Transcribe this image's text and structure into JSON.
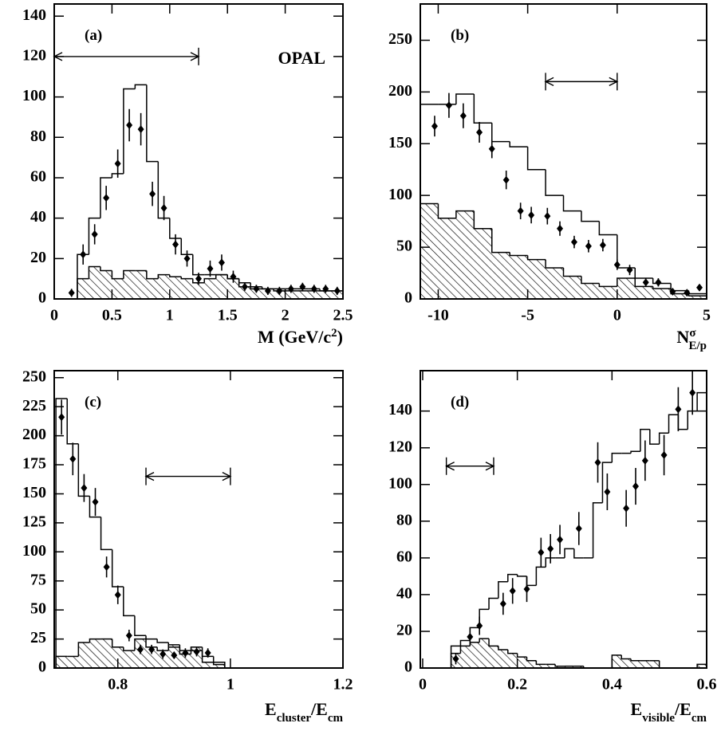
{
  "chart_data": [
    {
      "type": "histogram",
      "panel_label": "(a)",
      "annotation": "OPAL",
      "xlabel": [
        {
          "text": "M (GeV/c"
        },
        {
          "text": "2",
          "baseline": "super"
        },
        {
          "text": ")"
        }
      ],
      "xlim": [
        0,
        2.5
      ],
      "ylim": [
        0,
        146
      ],
      "xticks": [
        0,
        0.5,
        1,
        1.5,
        2,
        2.5
      ],
      "yticks": [
        0,
        20,
        40,
        60,
        80,
        100,
        120,
        140
      ],
      "bins": [
        0.2,
        0.3,
        0.4,
        0.5,
        0.6,
        0.7,
        0.8,
        0.9,
        1,
        1.1,
        1.2,
        1.3,
        1.4,
        1.5,
        1.6,
        1.7,
        1.8,
        1.9,
        2,
        2.1,
        2.2,
        2.3,
        2.4,
        2.5
      ],
      "values": [
        22,
        40,
        60,
        62,
        104,
        106,
        68,
        40,
        30,
        22,
        12,
        12,
        12,
        10,
        8,
        6,
        5,
        5,
        5,
        5,
        5,
        4,
        4
      ],
      "background": [
        10,
        16,
        14,
        10,
        14,
        14,
        10,
        12,
        11,
        10,
        8,
        10,
        12,
        10,
        6,
        5,
        5,
        4,
        4,
        4,
        4,
        4,
        4
      ],
      "points": {
        "x": [
          0.15,
          0.25,
          0.35,
          0.45,
          0.55,
          0.65,
          0.75,
          0.85,
          0.95,
          1.05,
          1.15,
          1.25,
          1.35,
          1.45,
          1.55,
          1.65,
          1.75,
          1.85,
          1.95,
          2.05,
          2.15,
          2.25,
          2.35,
          2.45
        ],
        "values": [
          3,
          22,
          32,
          50,
          67,
          86,
          84,
          52,
          45,
          27,
          20,
          10,
          15,
          18,
          11,
          6,
          5,
          4,
          4,
          5,
          6,
          5,
          5,
          4
        ],
        "errors": [
          2,
          5,
          5,
          6,
          7,
          8,
          8,
          6,
          6,
          5,
          4,
          3,
          4,
          4,
          3,
          2,
          2,
          2,
          2,
          2,
          2,
          2,
          2,
          2
        ]
      },
      "selection": [
        0,
        1.25,
        120
      ]
    },
    {
      "type": "histogram",
      "panel_label": "(b)",
      "xlabel": [
        {
          "text": "N"
        },
        {
          "text": "σ",
          "baseline": "super"
        },
        {
          "text": "E/p",
          "baseline": "sub"
        }
      ],
      "xlim": [
        -11,
        5
      ],
      "ylim": [
        0,
        285
      ],
      "xticks": [
        -10,
        -5,
        0,
        5
      ],
      "yticks": [
        0,
        50,
        100,
        150,
        200,
        250
      ],
      "bins": [
        -11,
        -10,
        -9,
        -8,
        -7,
        -6,
        -5,
        -4,
        -3,
        -2,
        -1,
        0,
        1,
        2,
        3,
        4,
        5
      ],
      "values": [
        188,
        188,
        198,
        170,
        152,
        147,
        125,
        100,
        85,
        75,
        62,
        30,
        20,
        15,
        8,
        5
      ],
      "background": [
        92,
        78,
        85,
        68,
        45,
        42,
        38,
        30,
        22,
        15,
        12,
        20,
        12,
        10,
        5,
        3
      ],
      "points": {
        "x": [
          -10.2,
          -9.4,
          -8.6,
          -7.7,
          -7,
          -6.2,
          -5.4,
          -4.8,
          -3.9,
          -3.2,
          -2.4,
          -1.6,
          -0.8,
          0,
          0.7,
          1.6,
          2.3,
          3.1,
          3.9,
          4.6
        ],
        "values": [
          167,
          187,
          177,
          161,
          145,
          115,
          85,
          81,
          80,
          68,
          55,
          51,
          52,
          33,
          28,
          16,
          16,
          7,
          6,
          11
        ],
        "errors": [
          10,
          12,
          12,
          10,
          9,
          9,
          8,
          8,
          8,
          7,
          6,
          6,
          6,
          5,
          5,
          4,
          4,
          3,
          3,
          3
        ]
      },
      "selection": [
        -4,
        0,
        210
      ]
    },
    {
      "type": "histogram",
      "panel_label": "(c)",
      "xlabel": [
        {
          "text": "E"
        },
        {
          "text": "cluster",
          "baseline": "sub"
        },
        {
          "text": "/E"
        },
        {
          "text": "cm",
          "baseline": "sub"
        }
      ],
      "xlim": [
        0.687,
        1.2
      ],
      "ylim": [
        0,
        256
      ],
      "xticks": [
        0.8,
        1,
        1.2
      ],
      "yticks": [
        0,
        25,
        50,
        75,
        100,
        125,
        150,
        175,
        200,
        225,
        250
      ],
      "bins": [
        0.69,
        0.71,
        0.73,
        0.75,
        0.77,
        0.79,
        0.81,
        0.83,
        0.85,
        0.87,
        0.89,
        0.91,
        0.93,
        0.95,
        0.97,
        0.99
      ],
      "values": [
        232,
        193,
        148,
        130,
        102,
        70,
        45,
        28,
        25,
        22,
        18,
        15,
        15,
        10,
        5
      ],
      "background": [
        10,
        10,
        22,
        25,
        25,
        18,
        15,
        25,
        18,
        15,
        20,
        12,
        18,
        5,
        3
      ],
      "points": {
        "x": [
          0.7,
          0.72,
          0.74,
          0.76,
          0.78,
          0.8,
          0.82,
          0.84,
          0.86,
          0.88,
          0.9,
          0.92,
          0.94,
          0.96
        ],
        "values": [
          216,
          180,
          155,
          143,
          87,
          63,
          28,
          16,
          16,
          12,
          11,
          13,
          14,
          13
        ],
        "errors": [
          15,
          14,
          12,
          12,
          9,
          8,
          5,
          4,
          4,
          4,
          3,
          4,
          4,
          4
        ]
      },
      "selection": [
        0.85,
        1,
        165
      ]
    },
    {
      "type": "histogram",
      "panel_label": "(d)",
      "xlabel": [
        {
          "text": "E"
        },
        {
          "text": "visible",
          "baseline": "sub"
        },
        {
          "text": "/E"
        },
        {
          "text": "cm",
          "baseline": "sub"
        }
      ],
      "xlim": [
        -0.005,
        0.6
      ],
      "ylim": [
        0,
        162
      ],
      "xticks": [
        0,
        0.2,
        0.4,
        0.6
      ],
      "yticks": [
        0,
        20,
        40,
        60,
        80,
        100,
        120,
        140
      ],
      "bins": [
        0.06,
        0.08,
        0.1,
        0.12,
        0.14,
        0.16,
        0.18,
        0.2,
        0.22,
        0.24,
        0.26,
        0.28,
        0.3,
        0.32,
        0.34,
        0.36,
        0.38,
        0.4,
        0.42,
        0.44,
        0.46,
        0.48,
        0.5,
        0.52,
        0.54,
        0.56,
        0.58,
        0.6
      ],
      "values": [
        12,
        15,
        22,
        32,
        38,
        47,
        51,
        50,
        45,
        55,
        60,
        60,
        65,
        60,
        60,
        90,
        112,
        117,
        117,
        118,
        130,
        122,
        128,
        138,
        130,
        140,
        150
      ],
      "background": [
        8,
        12,
        14,
        16,
        12,
        10,
        8,
        6,
        4,
        2,
        2,
        1,
        1,
        1,
        0,
        0,
        0,
        7,
        5,
        4,
        4,
        4,
        0,
        0,
        0,
        0,
        2
      ],
      "points": {
        "x": [
          0.07,
          0.1,
          0.12,
          0.17,
          0.19,
          0.22,
          0.25,
          0.27,
          0.29,
          0.33,
          0.37,
          0.39,
          0.43,
          0.45,
          0.47,
          0.51,
          0.54,
          0.57
        ],
        "values": [
          5,
          17,
          23,
          35,
          42,
          43,
          63,
          65,
          70,
          76,
          112,
          96,
          87,
          99,
          113,
          116,
          141,
          150
        ],
        "errors": [
          3,
          5,
          5,
          6,
          7,
          7,
          8,
          8,
          8,
          9,
          11,
          10,
          10,
          10,
          11,
          11,
          12,
          12
        ]
      },
      "selection": [
        0.05,
        0.15,
        110
      ]
    }
  ]
}
